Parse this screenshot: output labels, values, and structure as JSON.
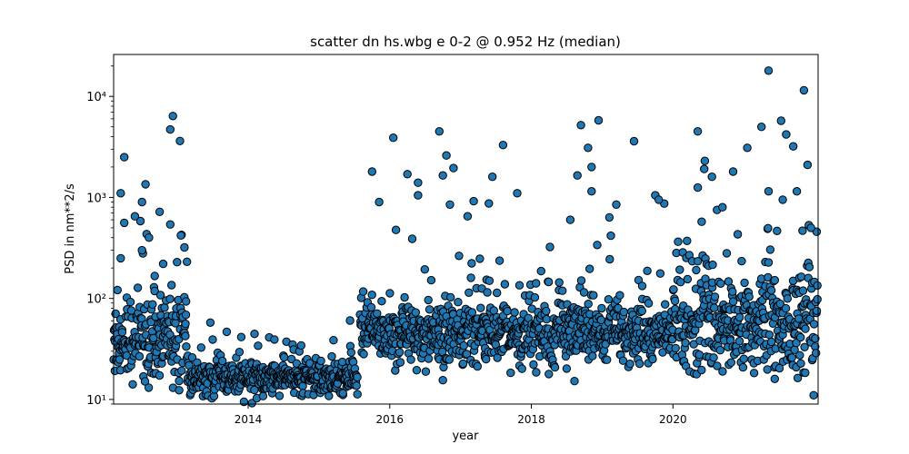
{
  "chart_data": {
    "type": "scatter",
    "title": "scatter dn hs.wbg e 0-2 @ 0.952 Hz (median)",
    "xlabel": "year",
    "ylabel": "PSD in nm**2/s",
    "xlim": [
      2012.1,
      2022.05
    ],
    "ylim": [
      9.0,
      26000
    ],
    "yscale": "log",
    "grid": false,
    "x_ticks": [
      2014,
      2016,
      2018,
      2020
    ],
    "x_tick_labels": [
      "2014",
      "2016",
      "2018",
      "2020"
    ],
    "y_ticks": [
      10,
      100,
      1000,
      10000
    ],
    "y_tick_labels": [
      "10¹",
      "10²",
      "10³",
      "10⁴"
    ],
    "marker_color": "#1f77b4",
    "marker_edge_color": "#000000",
    "segments": [
      {
        "x_start": 2012.1,
        "x_end": 2013.15,
        "median_y": 40,
        "spread": 0.2
      },
      {
        "x_start": 2013.15,
        "x_end": 2015.55,
        "median_y": 16,
        "spread": 0.08
      },
      {
        "x_start": 2015.58,
        "x_end": 2020.0,
        "median_y": 45,
        "spread": 0.15
      },
      {
        "x_start": 2020.0,
        "x_end": 2022.05,
        "median_y": 55,
        "spread": 0.25
      }
    ],
    "outliers": [
      {
        "x": 2012.25,
        "y": 2500
      },
      {
        "x": 2012.2,
        "y": 1100
      },
      {
        "x": 2012.25,
        "y": 560
      },
      {
        "x": 2012.4,
        "y": 650
      },
      {
        "x": 2012.5,
        "y": 900
      },
      {
        "x": 2012.55,
        "y": 1350
      },
      {
        "x": 2012.6,
        "y": 400
      },
      {
        "x": 2012.75,
        "y": 720
      },
      {
        "x": 2012.9,
        "y": 4700
      },
      {
        "x": 2012.9,
        "y": 540
      },
      {
        "x": 2013.05,
        "y": 420
      },
      {
        "x": 2013.1,
        "y": 320
      },
      {
        "x": 2012.2,
        "y": 250
      },
      {
        "x": 2012.5,
        "y": 300
      },
      {
        "x": 2012.8,
        "y": 220
      },
      {
        "x": 2015.75,
        "y": 1800
      },
      {
        "x": 2015.85,
        "y": 900
      },
      {
        "x": 2016.05,
        "y": 3900
      },
      {
        "x": 2016.25,
        "y": 1700
      },
      {
        "x": 2016.4,
        "y": 1400
      },
      {
        "x": 2016.4,
        "y": 1050
      },
      {
        "x": 2016.7,
        "y": 4500
      },
      {
        "x": 2016.8,
        "y": 2600
      },
      {
        "x": 2016.9,
        "y": 1950
      },
      {
        "x": 2016.75,
        "y": 1650
      },
      {
        "x": 2016.85,
        "y": 850
      },
      {
        "x": 2016.75,
        "y": 15.5
      },
      {
        "x": 2017.1,
        "y": 650
      },
      {
        "x": 2017.45,
        "y": 1600
      },
      {
        "x": 2017.6,
        "y": 3300
      },
      {
        "x": 2017.8,
        "y": 1100
      },
      {
        "x": 2017.4,
        "y": 870
      },
      {
        "x": 2018.7,
        "y": 5200
      },
      {
        "x": 2018.8,
        "y": 3100
      },
      {
        "x": 2018.95,
        "y": 5800
      },
      {
        "x": 2018.85,
        "y": 2000
      },
      {
        "x": 2018.65,
        "y": 1650
      },
      {
        "x": 2018.85,
        "y": 1150
      },
      {
        "x": 2018.55,
        "y": 600
      },
      {
        "x": 2019.45,
        "y": 3600
      },
      {
        "x": 2019.75,
        "y": 1050
      },
      {
        "x": 2019.2,
        "y": 850
      },
      {
        "x": 2020.35,
        "y": 4500
      },
      {
        "x": 2020.45,
        "y": 2300
      },
      {
        "x": 2020.55,
        "y": 1600
      },
      {
        "x": 2020.35,
        "y": 1250
      },
      {
        "x": 2020.85,
        "y": 1800
      },
      {
        "x": 2021.05,
        "y": 3100
      },
      {
        "x": 2021.25,
        "y": 5000
      },
      {
        "x": 2021.35,
        "y": 18000
      },
      {
        "x": 2021.6,
        "y": 4200
      },
      {
        "x": 2021.7,
        "y": 3200
      },
      {
        "x": 2021.85,
        "y": 11500
      },
      {
        "x": 2021.75,
        "y": 1150
      },
      {
        "x": 2021.55,
        "y": 950
      },
      {
        "x": 2021.35,
        "y": 1150
      },
      {
        "x": 2021.95,
        "y": 500
      },
      {
        "x": 2020.7,
        "y": 800
      },
      {
        "x": 2019.8,
        "y": 950
      }
    ]
  }
}
